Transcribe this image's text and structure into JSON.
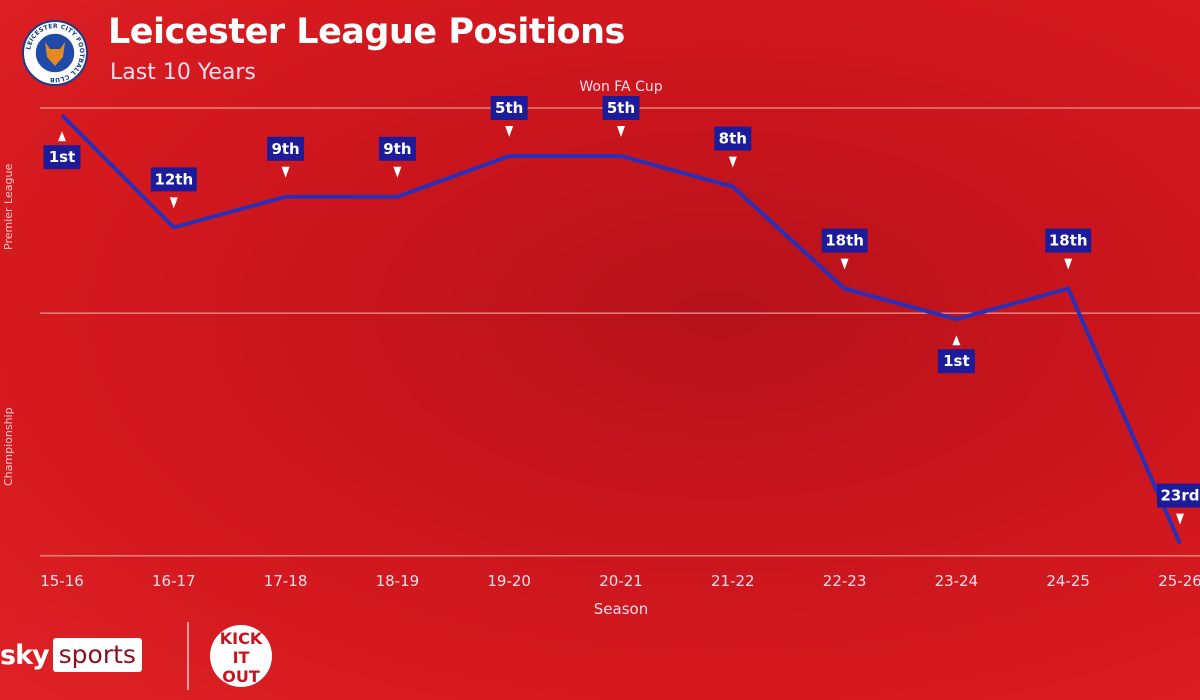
{
  "header": {
    "title": "Leicester League Positions",
    "subtitle": "Last 10 Years",
    "club_logo_text": "LEICESTER CITY FOOTBALL CLUB"
  },
  "chart_data": {
    "type": "line",
    "title": "Leicester League Positions",
    "subtitle": "Last 10 Years",
    "xlabel": "Season",
    "y_bands": [
      "Premier League",
      "Championship"
    ],
    "categories": [
      "15-16",
      "16-17",
      "17-18",
      "18-19",
      "19-20",
      "20-21",
      "21-22",
      "22-23",
      "23-24",
      "24-25",
      "25-26"
    ],
    "series": [
      {
        "name": "Leicester",
        "league": [
          "Premier League",
          "Premier League",
          "Premier League",
          "Premier League",
          "Premier League",
          "Premier League",
          "Premier League",
          "Premier League",
          "Championship",
          "Premier League",
          "Championship"
        ],
        "position": [
          1,
          12,
          9,
          9,
          5,
          5,
          8,
          18,
          1,
          18,
          23
        ],
        "labels": [
          "1st",
          "12th",
          "9th",
          "9th",
          "5th",
          "5th",
          "8th",
          "18th",
          "1st",
          "18th",
          "23rd"
        ]
      }
    ],
    "annotations": [
      {
        "season": "20-21",
        "text": "Won FA Cup"
      }
    ],
    "premier_league_size": 20,
    "ylim_combined_rank": [
      0,
      45
    ],
    "line_color": "#2a2fb8",
    "label_bg": "#1c1c9a"
  },
  "footer": {
    "broadcaster": "sky sports",
    "broadcaster_w1": "sky",
    "broadcaster_w2": "sports",
    "partner": "KICK IT OUT"
  }
}
